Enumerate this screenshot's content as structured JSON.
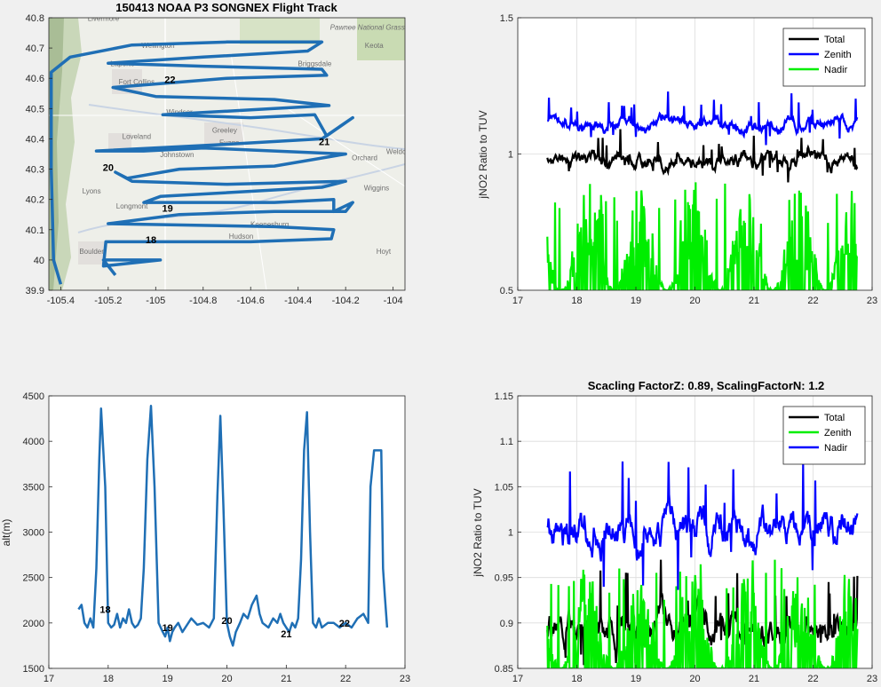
{
  "figure_background": "#f0f0f0",
  "chart_data": [
    {
      "id": "map",
      "type": "line",
      "title": "150413 NOAA P3 SONGNEX Flight Track",
      "xlabel": "",
      "ylabel": "",
      "xlim": [
        -105.45,
        -103.95
      ],
      "ylim": [
        39.9,
        40.8
      ],
      "xticks": [
        -105.4,
        -105.2,
        -105,
        -104.8,
        -104.6,
        -104.4,
        -104.2,
        -104
      ],
      "yticks": [
        39.9,
        40,
        40.1,
        40.2,
        40.3,
        40.4,
        40.5,
        40.6,
        40.7,
        40.8
      ],
      "grid": false,
      "basemap_labels": [
        {
          "text": "Livermore",
          "lon": -105.22,
          "lat": 40.79
        },
        {
          "text": "Pawnee National Grassland",
          "lon": -104.08,
          "lat": 40.76
        },
        {
          "text": "Keota",
          "lon": -104.08,
          "lat": 40.7
        },
        {
          "text": "Wellington",
          "lon": -104.99,
          "lat": 40.7
        },
        {
          "text": "Laporte",
          "lon": -105.14,
          "lat": 40.64
        },
        {
          "text": "Fort Collins",
          "lon": -105.08,
          "lat": 40.58
        },
        {
          "text": "Briggsdale",
          "lon": -104.33,
          "lat": 40.64
        },
        {
          "text": "Windsor",
          "lon": -104.9,
          "lat": 40.48
        },
        {
          "text": "Greeley",
          "lon": -104.71,
          "lat": 40.42
        },
        {
          "text": "Loveland",
          "lon": -105.08,
          "lat": 40.4
        },
        {
          "text": "Evans",
          "lon": -104.69,
          "lat": 40.38
        },
        {
          "text": "Johnstown",
          "lon": -104.91,
          "lat": 40.34
        },
        {
          "text": "Orchard",
          "lon": -104.12,
          "lat": 40.33
        },
        {
          "text": "Weldona",
          "lon": -103.97,
          "lat": 40.35
        },
        {
          "text": "Lyons",
          "lon": -105.27,
          "lat": 40.22
        },
        {
          "text": "Longmont",
          "lon": -105.1,
          "lat": 40.17
        },
        {
          "text": "Wiggins",
          "lon": -104.07,
          "lat": 40.23
        },
        {
          "text": "Keenesburg",
          "lon": -104.52,
          "lat": 40.11
        },
        {
          "text": "Hudson",
          "lon": -104.64,
          "lat": 40.07
        },
        {
          "text": "Boulder",
          "lon": -105.27,
          "lat": 40.02
        },
        {
          "text": "Hoyt",
          "lon": -104.04,
          "lat": 40.02
        }
      ],
      "track_color": "#1f6fb5",
      "track": [
        [
          -105.17,
          39.95
        ],
        [
          -105.22,
          40.0
        ],
        [
          -105.05,
          40.0
        ],
        [
          -104.98,
          40.0
        ],
        [
          -105.22,
          39.98
        ],
        [
          -105.21,
          40.06
        ],
        [
          -104.6,
          40.06
        ],
        [
          -104.26,
          40.07
        ],
        [
          -104.25,
          40.1
        ],
        [
          -104.5,
          40.11
        ],
        [
          -105.2,
          40.12
        ],
        [
          -104.9,
          40.15
        ],
        [
          -104.5,
          40.16
        ],
        [
          -104.2,
          40.16
        ],
        [
          -104.17,
          40.19
        ],
        [
          -104.25,
          40.16
        ],
        [
          -104.25,
          40.2
        ],
        [
          -104.5,
          40.19
        ],
        [
          -105.05,
          40.19
        ],
        [
          -104.98,
          40.21
        ],
        [
          -104.3,
          40.24
        ],
        [
          -104.2,
          40.26
        ],
        [
          -104.7,
          40.25
        ],
        [
          -105.1,
          40.26
        ],
        [
          -105.17,
          40.29
        ],
        [
          -105.12,
          40.27
        ],
        [
          -104.9,
          40.3
        ],
        [
          -104.5,
          40.31
        ],
        [
          -104.2,
          40.35
        ],
        [
          -104.5,
          40.36
        ],
        [
          -104.8,
          40.37
        ],
        [
          -105.05,
          40.36
        ],
        [
          -105.25,
          40.36
        ],
        [
          -104.75,
          40.38
        ],
        [
          -104.3,
          40.4
        ],
        [
          -104.17,
          40.47
        ],
        [
          -104.28,
          40.41
        ],
        [
          -104.33,
          40.48
        ],
        [
          -104.6,
          40.47
        ],
        [
          -104.97,
          40.48
        ],
        [
          -104.5,
          40.5
        ],
        [
          -104.27,
          40.51
        ],
        [
          -104.5,
          40.53
        ],
        [
          -105.0,
          40.54
        ],
        [
          -105.18,
          40.57
        ],
        [
          -104.7,
          40.6
        ],
        [
          -104.28,
          40.61
        ],
        [
          -104.3,
          40.63
        ],
        [
          -104.8,
          40.64
        ],
        [
          -105.2,
          40.65
        ],
        [
          -104.8,
          40.67
        ],
        [
          -104.36,
          40.69
        ],
        [
          -104.3,
          40.72
        ],
        [
          -104.7,
          40.72
        ],
        [
          -105.1,
          40.71
        ],
        [
          -105.36,
          40.67
        ],
        [
          -105.44,
          40.62
        ],
        [
          -105.44,
          40.3
        ],
        [
          -105.43,
          40.0
        ],
        [
          -105.4,
          39.92
        ]
      ],
      "annotations": [
        {
          "text": "22",
          "lon": -104.94,
          "lat": 40.585
        },
        {
          "text": "21",
          "lon": -104.29,
          "lat": 40.38
        },
        {
          "text": "20",
          "lon": -105.2,
          "lat": 40.295
        },
        {
          "text": "19",
          "lon": -104.95,
          "lat": 40.16
        },
        {
          "text": "18",
          "lon": -105.02,
          "lat": 40.055
        }
      ]
    },
    {
      "id": "ratio-top",
      "type": "line",
      "title": "",
      "xlabel": "",
      "ylabel": "jNO2 Ratio to TUV",
      "xlim": [
        17,
        23
      ],
      "ylim": [
        0.5,
        1.5
      ],
      "xticks": [
        17,
        18,
        19,
        20,
        21,
        22,
        23
      ],
      "yticks": [
        0.5,
        1,
        1.5
      ],
      "grid": true,
      "legend": "top-right",
      "series": [
        {
          "name": "Total",
          "color": "#000000",
          "base": 0.975,
          "amp": 0.04,
          "pk": 0.09,
          "seed": 11,
          "kind": "smooth"
        },
        {
          "name": "Zenith",
          "color": "#0000ff",
          "base": 1.11,
          "amp": 0.035,
          "pk": 0.09,
          "seed": 23,
          "kind": "smooth"
        },
        {
          "name": "Nadir",
          "color": "#00ee00",
          "base": 0.5,
          "amp": 0.3,
          "pk": 0.4,
          "seed": 37,
          "kind": "spiky"
        }
      ]
    },
    {
      "id": "altitude",
      "type": "line",
      "title": "",
      "xlabel": "",
      "ylabel": "alt(m)",
      "xlim": [
        17,
        23
      ],
      "ylim": [
        1500,
        4500
      ],
      "xticks": [
        17,
        18,
        19,
        20,
        21,
        22,
        23
      ],
      "yticks": [
        1500,
        2000,
        2500,
        3000,
        3500,
        4000,
        4500
      ],
      "grid": false,
      "line_color": "#1f6fb5",
      "x": [
        17.5,
        17.55,
        17.6,
        17.65,
        17.7,
        17.75,
        17.8,
        17.85,
        17.88,
        17.95,
        18.0,
        18.05,
        18.1,
        18.15,
        18.2,
        18.25,
        18.3,
        18.35,
        18.4,
        18.45,
        18.5,
        18.55,
        18.6,
        18.66,
        18.72,
        18.78,
        18.85,
        18.92,
        18.96,
        19.0,
        19.04,
        19.08,
        19.12,
        19.18,
        19.25,
        19.3,
        19.4,
        19.5,
        19.6,
        19.7,
        19.78,
        19.84,
        19.89,
        19.94,
        20.0,
        20.05,
        20.1,
        20.15,
        20.22,
        20.28,
        20.35,
        20.42,
        20.5,
        20.55,
        20.6,
        20.7,
        20.78,
        20.85,
        20.9,
        20.95,
        21.0,
        21.05,
        21.1,
        21.15,
        21.2,
        21.25,
        21.3,
        21.35,
        21.4,
        21.45,
        21.5,
        21.55,
        21.6,
        21.7,
        21.8,
        21.9,
        22.0,
        22.1,
        22.2,
        22.3,
        22.38,
        22.42,
        22.48,
        22.55,
        22.6,
        22.63,
        22.66,
        22.7
      ],
      "y": [
        2150,
        2200,
        2000,
        1950,
        2050,
        1950,
        2600,
        3800,
        4360,
        3500,
        2000,
        1950,
        1980,
        2100,
        1950,
        2050,
        2000,
        2150,
        2000,
        1950,
        1980,
        2050,
        2600,
        3800,
        4390,
        3500,
        2000,
        1900,
        1850,
        1950,
        1800,
        1900,
        1950,
        2000,
        1900,
        1950,
        2050,
        1980,
        2000,
        1950,
        2050,
        3400,
        4280,
        3300,
        2000,
        1850,
        1750,
        1900,
        2000,
        2100,
        2050,
        2200,
        2300,
        2100,
        2000,
        1950,
        2050,
        2000,
        2100,
        2000,
        1950,
        1900,
        2000,
        1950,
        2050,
        2700,
        3900,
        4320,
        3000,
        2000,
        1950,
        2050,
        1950,
        2000,
        2000,
        1950,
        2000,
        1950,
        2050,
        2100,
        2000,
        3500,
        3900,
        3900,
        3900,
        2600,
        2300,
        1950
      ],
      "annotations": [
        {
          "text": "18",
          "x": 17.95,
          "y": 2110
        },
        {
          "text": "19",
          "x": 19.0,
          "y": 1910
        },
        {
          "text": "20",
          "x": 20.0,
          "y": 1990
        },
        {
          "text": "21",
          "x": 21.0,
          "y": 1840
        },
        {
          "text": "22",
          "x": 21.98,
          "y": 1960
        }
      ]
    },
    {
      "id": "ratio-bottom",
      "type": "line",
      "title": "Scacling FactorZ: 0.89, ScalingFactorN: 1.2",
      "xlabel": "",
      "ylabel": "jNO2 Ratio to TUV",
      "xlim": [
        17,
        23
      ],
      "ylim": [
        0.85,
        1.15
      ],
      "xticks": [
        17,
        18,
        19,
        20,
        21,
        22,
        23
      ],
      "yticks": [
        0.85,
        0.9,
        0.95,
        1,
        1.05,
        1.1,
        1.15
      ],
      "grid": true,
      "legend": "top-right",
      "series": [
        {
          "name": "Total",
          "color": "#000000",
          "base": 0.895,
          "amp": 0.025,
          "pk": 0.06,
          "seed": 51,
          "kind": "smooth"
        },
        {
          "name": "Zenith",
          "color": "#00ee00",
          "base": 0.85,
          "amp": 0.08,
          "pk": 0.12,
          "seed": 67,
          "kind": "spiky"
        },
        {
          "name": "Nadir",
          "color": "#0000ff",
          "base": 1.0,
          "amp": 0.03,
          "pk": 0.08,
          "seed": 79,
          "kind": "smooth"
        }
      ]
    }
  ]
}
